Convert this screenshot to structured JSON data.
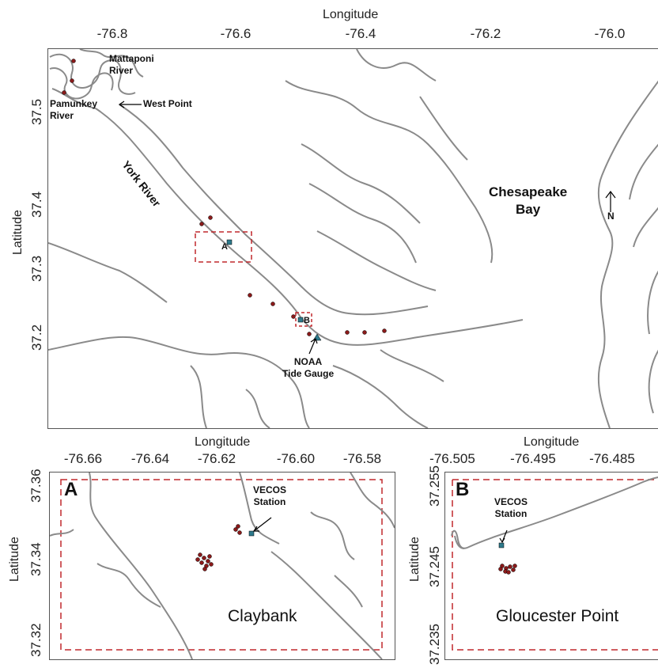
{
  "top": {
    "xlabel": "Longitude",
    "ylabel": "Latitude",
    "xticks": [
      "-76.8",
      "-76.6",
      "-76.4",
      "-76.2",
      "-76.0"
    ],
    "yticks": [
      "37.5",
      "37.4",
      "37.3",
      "37.2"
    ],
    "labels": {
      "mattaponi": "Mattaponi\nRiver",
      "pamunkey": "Pamunkey\nRiver",
      "west_point": "West Point",
      "york_river": "York River",
      "chesapeake": "Chesapeake\nBay",
      "north": "N",
      "box_a": "A",
      "box_b": "B",
      "noaa": "NOAA\nTide Gauge"
    }
  },
  "panel_a": {
    "letter": "A",
    "xlabel": "Longitude",
    "ylabel": "Latitude",
    "xticks": [
      "-76.66",
      "-76.64",
      "-76.62",
      "-76.60",
      "-76.58"
    ],
    "yticks": [
      "37.36",
      "37.34",
      "37.32"
    ],
    "station": "VECOS\nStation",
    "site": "Claybank"
  },
  "panel_b": {
    "letter": "B",
    "xlabel": "Longitude",
    "ylabel": "Latitude",
    "xticks": [
      "-76.505",
      "-76.495",
      "-76.485"
    ],
    "yticks": [
      "37.255",
      "37.245",
      "37.235"
    ],
    "station": "VECOS\nStation",
    "site": "Gloucester Point"
  },
  "colors": {
    "shoreline": "#8a8a8a",
    "box": "#c0282d",
    "points": "#8b1a1a",
    "station": "#2e7a8c"
  }
}
